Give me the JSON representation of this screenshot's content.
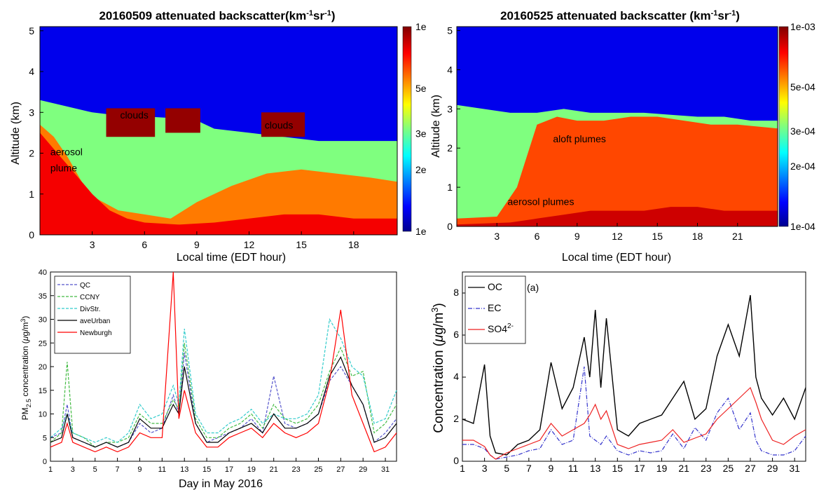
{
  "chart_data": [
    {
      "type": "heatmap",
      "title": "20160509 attenuated backscatter(km",
      "title_sup1": "-1",
      "title_mid": "sr",
      "title_sup2": "-1",
      "title_end": ")",
      "xlabel": "Local time  (EDT hour)",
      "ylabel": "Altitude (km)",
      "xlim": [
        0,
        20.5
      ],
      "ylim": [
        0,
        5.1
      ],
      "xticks": [
        "3",
        "6",
        "9",
        "12",
        "15",
        "18"
      ],
      "xtick_values": [
        3,
        6,
        9,
        12,
        15,
        18
      ],
      "yticks": [
        "0",
        "1",
        "2",
        "3",
        "4",
        "5"
      ],
      "colorbar_labels": [
        "1e",
        "2e",
        "3e",
        "5e",
        "1e"
      ],
      "colorbar_values": [
        0.0001,
        0.0002,
        0.0003,
        0.0005,
        0.001
      ],
      "colorscale": "log jet",
      "layers": [
        {
          "x": [
            0,
            1,
            2,
            3,
            4,
            6,
            8,
            9,
            10,
            12,
            14,
            16,
            18,
            20.5
          ],
          "top": [
            3.3,
            3.2,
            3.1,
            3.0,
            2.95,
            2.9,
            2.85,
            2.8,
            2.6,
            2.5,
            2.4,
            2.3,
            2.3,
            2.3
          ],
          "level": 0.5
        },
        {
          "x": [
            0,
            0.8,
            1.6,
            2.4,
            3.2,
            4.5,
            6,
            7.5,
            9,
            11,
            13,
            15,
            17,
            19,
            20.5
          ],
          "top": [
            2.7,
            2.4,
            1.9,
            1.3,
            0.9,
            0.6,
            0.5,
            0.4,
            0.8,
            1.2,
            1.5,
            1.6,
            1.5,
            1.4,
            1.3
          ],
          "level": 0.75
        },
        {
          "x": [
            0,
            1,
            2,
            3,
            4,
            5,
            6,
            8,
            10,
            12,
            14,
            16,
            18,
            20.5
          ],
          "top": [
            2.5,
            2.0,
            1.5,
            1.0,
            0.6,
            0.4,
            0.3,
            0.25,
            0.3,
            0.4,
            0.5,
            0.5,
            0.4,
            0.4
          ],
          "level": 0.88
        }
      ],
      "clouds": [
        {
          "x0": 3.8,
          "x1": 6.6,
          "y0": 2.4,
          "y1": 3.1
        },
        {
          "x0": 7.2,
          "x1": 9.2,
          "y0": 2.5,
          "y1": 3.1
        },
        {
          "x0": 12.7,
          "x1": 15.2,
          "y0": 2.4,
          "y1": 3.0
        }
      ],
      "annotations": [
        {
          "text": "clouds",
          "x": 4.6,
          "y": 2.85
        },
        {
          "text": "clouds",
          "x": 12.9,
          "y": 2.6
        },
        {
          "text": "aerosol",
          "x": 0.6,
          "y": 1.95
        },
        {
          "text": "plume",
          "x": 0.6,
          "y": 1.55
        }
      ]
    },
    {
      "type": "heatmap",
      "title": "20160525 attenuated backscatter (km",
      "title_sup1": "-1",
      "title_mid": "sr",
      "title_sup2": "-1",
      "title_end": ")",
      "xlabel": "Local time  (EDT hour)",
      "ylabel": "Altitude (km)",
      "xlim": [
        0,
        24
      ],
      "ylim": [
        0,
        5.1
      ],
      "xticks": [
        "3",
        "6",
        "9",
        "12",
        "15",
        "18",
        "21"
      ],
      "xtick_values": [
        3,
        6,
        9,
        12,
        15,
        18,
        21
      ],
      "yticks": [
        "0",
        "1",
        "2",
        "3",
        "4",
        "5"
      ],
      "colorbar_labels": [
        "1e-03",
        "5e-04",
        "3e-04",
        "2e-04",
        "1e-04"
      ],
      "colorbar_values": [
        0.001,
        0.0005,
        0.0003,
        0.0002,
        0.0001
      ],
      "colorscale": "log jet",
      "layers": [
        {
          "x": [
            0,
            2,
            4,
            6,
            8,
            10,
            12,
            14,
            16,
            18,
            20,
            22,
            24
          ],
          "top": [
            3.1,
            3.0,
            2.9,
            2.9,
            3.0,
            2.9,
            2.9,
            2.9,
            2.85,
            2.8,
            2.8,
            2.7,
            2.7
          ],
          "level": 0.5
        },
        {
          "x": [
            0,
            3,
            4.5,
            6,
            7.5,
            9,
            11,
            13,
            15,
            17,
            19,
            21,
            24
          ],
          "top": [
            0.2,
            0.25,
            1.0,
            2.6,
            2.8,
            2.7,
            2.7,
            2.8,
            2.8,
            2.7,
            2.6,
            2.6,
            2.5
          ],
          "level": 0.8
        },
        {
          "x": [
            0,
            4,
            6,
            8,
            10,
            12,
            14,
            16,
            18,
            20,
            22,
            24
          ],
          "top": [
            0.05,
            0.1,
            0.2,
            0.3,
            0.4,
            0.4,
            0.4,
            0.5,
            0.5,
            0.4,
            0.4,
            0.4
          ],
          "level": 0.92
        }
      ],
      "annotations": [
        {
          "text": "aloft plumes",
          "x": 7.2,
          "y": 2.15
        },
        {
          "text": "aerosol plumes",
          "x": 3.8,
          "y": 0.55
        }
      ]
    },
    {
      "type": "line",
      "title": "",
      "xlabel": "Day in May 2016",
      "ylabel": "PM2.5 concentration (μg/m3)",
      "ylabel_parts": [
        "PM",
        "2.5",
        " concentration (",
        "μ",
        "g/m",
        "3",
        ")"
      ],
      "xlim": [
        1,
        32
      ],
      "ylim": [
        0,
        40
      ],
      "xticks": [
        "1",
        "3",
        "5",
        "7",
        "9",
        "11",
        "13",
        "15",
        "17",
        "19",
        "21",
        "23",
        "25",
        "27",
        "29",
        "31"
      ],
      "yticks": [
        "0",
        "5",
        "10",
        "15",
        "20",
        "25",
        "30",
        "35",
        "40"
      ],
      "legend_position": "top-left",
      "x": [
        1,
        2,
        2.5,
        3,
        4,
        5,
        6,
        7,
        8,
        9,
        10,
        11,
        12,
        12.5,
        13,
        14,
        15,
        16,
        17,
        18,
        19,
        20,
        21,
        22,
        23,
        24,
        25,
        26,
        27,
        28,
        29,
        30,
        31,
        32
      ],
      "series": [
        {
          "name": "QC",
          "values": [
            5,
            6,
            12,
            5,
            4,
            3,
            4,
            3,
            4,
            8,
            6,
            7,
            14,
            10,
            23,
            8,
            4,
            5,
            6,
            7,
            9,
            6,
            18,
            8,
            7,
            8,
            10,
            17,
            20,
            16,
            12,
            4,
            6,
            9
          ]
        },
        {
          "name": "CCNY",
          "values": [
            4,
            6,
            21,
            6,
            5,
            3,
            4,
            4,
            5,
            10,
            8,
            8,
            13,
            11,
            25,
            9,
            5,
            5,
            7,
            8,
            10,
            7,
            12,
            9,
            8,
            9,
            12,
            19,
            24,
            18,
            19,
            6,
            8,
            12
          ]
        },
        {
          "name": "DivStr.",
          "values": [
            5,
            7,
            10,
            6,
            5,
            4,
            5,
            4,
            6,
            12,
            9,
            10,
            16,
            12,
            28,
            10,
            6,
            6,
            8,
            9,
            11,
            8,
            10,
            9,
            9,
            10,
            14,
            30,
            26,
            20,
            18,
            8,
            9,
            15
          ]
        },
        {
          "name": "aveUrban",
          "values": [
            4,
            5,
            10,
            5,
            4,
            3,
            4,
            3,
            4,
            9,
            7,
            7,
            12,
            10,
            20,
            8,
            4,
            4,
            6,
            7,
            8,
            6,
            10,
            7,
            7,
            8,
            10,
            18,
            22,
            16,
            12,
            4,
            5,
            8
          ]
        },
        {
          "name": "Newburgh",
          "values": [
            3,
            4,
            8,
            4,
            3,
            2,
            3,
            2,
            3,
            6,
            5,
            5,
            40,
            9,
            15,
            6,
            3,
            3,
            5,
            6,
            7,
            5,
            8,
            6,
            5,
            6,
            8,
            17,
            32,
            14,
            8,
            2,
            3,
            6
          ]
        }
      ],
      "colors": [
        "#5555cc",
        "#44bb44",
        "#33cccc",
        "#000000",
        "#ff0000"
      ]
    },
    {
      "type": "line",
      "title": "",
      "xlabel": "",
      "ylabel": "Concentration (μg/m3)",
      "ylabel_parts": [
        "Concentration (",
        "μ",
        "g/m",
        "3",
        ")"
      ],
      "panel_label": "(a)",
      "xlim": [
        1,
        32
      ],
      "ylim": [
        0,
        9
      ],
      "xticks": [
        "1",
        "3",
        "5",
        "7",
        "9",
        "11",
        "13",
        "15",
        "17",
        "19",
        "21",
        "23",
        "25",
        "27",
        "29",
        "31"
      ],
      "yticks": [
        "0",
        "2",
        "4",
        "6",
        "8"
      ],
      "legend_position": "top-left",
      "x": [
        1,
        2,
        3,
        3.5,
        4,
        5,
        6,
        7,
        8,
        9,
        10,
        11,
        12,
        12.5,
        13,
        13.5,
        14,
        15,
        16,
        17,
        18,
        19,
        20,
        21,
        22,
        23,
        24,
        25,
        26,
        27,
        27.5,
        28,
        29,
        30,
        31,
        32
      ],
      "series": [
        {
          "name": "OC",
          "values": [
            2.0,
            1.8,
            4.6,
            1.2,
            0.4,
            0.3,
            0.8,
            1.0,
            1.5,
            4.7,
            2.5,
            3.5,
            5.9,
            4.0,
            7.2,
            3.5,
            6.8,
            1.5,
            1.2,
            1.8,
            2.0,
            2.2,
            3.0,
            3.8,
            2.0,
            2.5,
            5.0,
            6.5,
            5.0,
            7.9,
            4.0,
            3.0,
            2.2,
            3.0,
            2.0,
            3.5
          ]
        },
        {
          "name": "EC",
          "values": [
            0.8,
            0.8,
            0.6,
            0.3,
            0.1,
            0.2,
            0.3,
            0.5,
            0.6,
            1.5,
            0.8,
            1.0,
            4.5,
            1.2,
            1.0,
            0.8,
            1.2,
            0.5,
            0.3,
            0.5,
            0.4,
            0.5,
            1.3,
            0.6,
            1.6,
            1.0,
            2.3,
            3.0,
            1.5,
            2.3,
            1.0,
            0.5,
            0.3,
            0.3,
            0.5,
            1.2
          ]
        },
        {
          "name": "SO42-",
          "values": [
            1.0,
            1.0,
            0.7,
            0.3,
            0.1,
            0.4,
            0.6,
            0.8,
            1.0,
            1.8,
            1.2,
            1.5,
            1.8,
            2.2,
            2.7,
            2.0,
            2.4,
            0.8,
            0.6,
            0.8,
            0.9,
            1.0,
            1.5,
            0.9,
            1.1,
            1.3,
            2.0,
            2.5,
            3.0,
            3.5,
            2.8,
            2.0,
            1.0,
            0.8,
            1.2,
            1.5
          ]
        }
      ],
      "legend_label_parts": [
        [
          "OC"
        ],
        [
          "EC"
        ],
        [
          "SO4",
          "2-"
        ]
      ],
      "colors": [
        "#000000",
        "#3333cc",
        "#ee2222"
      ]
    }
  ]
}
